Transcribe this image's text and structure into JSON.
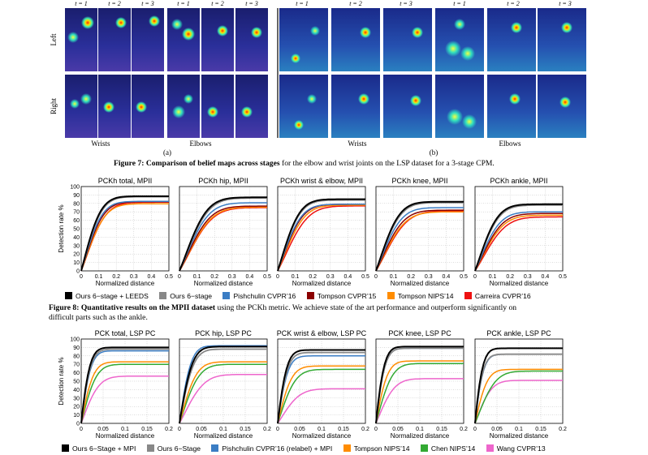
{
  "panelA": {
    "time_labels": [
      "t = 1",
      "t = 2",
      "t = 3",
      "t = 1",
      "t = 2",
      "t = 3"
    ],
    "row_labels": [
      "Left",
      "Right"
    ],
    "group_labels": [
      "Wrists",
      "Elbows"
    ],
    "sublabel": "(a)"
  },
  "panelB": {
    "time_labels": [
      "t = 1",
      "t = 2",
      "t = 3",
      "t = 1",
      "t = 2",
      "t = 3"
    ],
    "group_labels": [
      "Wrists",
      "Elbows"
    ],
    "sublabel": "(b)"
  },
  "fig7": {
    "label": "Figure 7:",
    "bold": "Comparison of belief maps across stages",
    "rest": "for the elbow and wrist joints on the LSP dataset for a 3-stage CPM."
  },
  "fig8": {
    "label": "Figure 8:",
    "bold": "Quantitative results on the MPII dataset",
    "rest1": "using the PCKh metric.  We achieve state of the art performance and outperform significantly on",
    "rest2": "difficult parts such as the ankle."
  },
  "legend_mpii": [
    {
      "label": "Ours 6−stage + LEEDS",
      "color": "#000000"
    },
    {
      "label": "Ours 6−stage",
      "color": "#888888"
    },
    {
      "label": "Pishchulin CVPR’16",
      "color": "#3b7dc4"
    },
    {
      "label": "Tompson CVPR’15",
      "color": "#8b0000"
    },
    {
      "label": "Tompson NIPS’14",
      "color": "#ff8c00"
    },
    {
      "label": "Carreira CVPR’16",
      "color": "#ee1111"
    }
  ],
  "legend_lsp": [
    {
      "label": "Ours 6−Stage + MPI",
      "color": "#000000"
    },
    {
      "label": "Ours 6−Stage",
      "color": "#888888"
    },
    {
      "label": "Pishchulin CVPR’16 (relabel) + MPI",
      "color": "#3b7dc4"
    },
    {
      "label": "Tompson NIPS’14",
      "color": "#ff8c00"
    },
    {
      "label": "Chen NIPS’14",
      "color": "#33aa33"
    },
    {
      "label": "Wang CVPR’13",
      "color": "#ee66cc"
    }
  ],
  "chart_data": [
    {
      "type": "line",
      "title": "PCKh total, MPII",
      "xlabel": "Normalized distance",
      "ylabel": "Detection rate %",
      "xlim": [
        0,
        0.5
      ],
      "ylim": [
        0,
        100
      ],
      "xticks": [
        "0",
        "0.1",
        "0.2",
        "0.3",
        "0.4",
        "0.5"
      ],
      "yticks": [
        "0",
        "10",
        "20",
        "30",
        "40",
        "50",
        "60",
        "70",
        "80",
        "90",
        "100"
      ],
      "grid": true,
      "series": [
        {
          "name": "Ours 6−stage + LEEDS",
          "final": 88.5,
          "k": 8.0
        },
        {
          "name": "Ours 6−stage",
          "final": 87.9,
          "k": 7.6
        },
        {
          "name": "Pishchulin CVPR’16",
          "final": 82.4,
          "k": 7.4
        },
        {
          "name": "Tompson CVPR’15",
          "final": 82.0,
          "k": 6.8
        },
        {
          "name": "Tompson NIPS’14",
          "final": 79.6,
          "k": 6.3
        },
        {
          "name": "Carreira CVPR’16",
          "final": 81.4,
          "k": 6.0
        }
      ]
    },
    {
      "type": "line",
      "title": "PCKh hip, MPII",
      "xlabel": "Normalized distance",
      "ylabel": "Detection rate %",
      "xlim": [
        0,
        0.5
      ],
      "ylim": [
        0,
        100
      ],
      "xticks": [
        "0",
        "0.1",
        "0.2",
        "0.3",
        "0.4",
        "0.5"
      ],
      "yticks": [
        "0",
        "10",
        "20",
        "30",
        "40",
        "50",
        "60",
        "70",
        "80",
        "90",
        "100"
      ],
      "grid": true,
      "series": [
        {
          "name": "Ours 6−stage + LEEDS",
          "final": 87.2,
          "k": 5.2
        },
        {
          "name": "Ours 6−stage",
          "final": 86.4,
          "k": 4.9
        },
        {
          "name": "Pishchulin CVPR’16",
          "final": 80.8,
          "k": 4.8
        },
        {
          "name": "Tompson CVPR’15",
          "final": 76.8,
          "k": 4.5
        },
        {
          "name": "Tompson NIPS’14",
          "final": 75.6,
          "k": 4.2
        },
        {
          "name": "Carreira CVPR’16",
          "final": 75.0,
          "k": 4.1
        }
      ]
    },
    {
      "type": "line",
      "title": "PCKh wrist & elbow, MPII",
      "xlabel": "Normalized distance",
      "ylabel": "Detection rate %",
      "xlim": [
        0,
        0.5
      ],
      "ylim": [
        0,
        100
      ],
      "xticks": [
        "0",
        "0.1",
        "0.2",
        "0.3",
        "0.4",
        "0.5"
      ],
      "yticks": [
        "0",
        "10",
        "20",
        "30",
        "40",
        "50",
        "60",
        "70",
        "80",
        "90",
        "100"
      ],
      "grid": true,
      "series": [
        {
          "name": "Ours 6−stage + LEEDS",
          "final": 85.0,
          "k": 7.0
        },
        {
          "name": "Ours 6−stage",
          "final": 84.0,
          "k": 6.8
        },
        {
          "name": "Pishchulin CVPR’16",
          "final": 79.0,
          "k": 6.4
        },
        {
          "name": "Tompson CVPR’15",
          "final": 79.0,
          "k": 6.0
        },
        {
          "name": "Tompson NIPS’14",
          "final": 78.0,
          "k": 5.4
        },
        {
          "name": "Carreira CVPR’16",
          "final": 77.0,
          "k": 4.6
        }
      ]
    },
    {
      "type": "line",
      "title": "PCKh knee, MPII",
      "xlabel": "Normalized distance",
      "ylabel": "Detection rate %",
      "xlim": [
        0,
        0.5
      ],
      "ylim": [
        0,
        100
      ],
      "xticks": [
        "0",
        "0.1",
        "0.2",
        "0.3",
        "0.4",
        "0.5"
      ],
      "yticks": [
        "0",
        "10",
        "20",
        "30",
        "40",
        "50",
        "60",
        "70",
        "80",
        "90",
        "100"
      ],
      "grid": true,
      "series": [
        {
          "name": "Ours 6−stage + LEEDS",
          "final": 82.0,
          "k": 6.4
        },
        {
          "name": "Ours 6−stage",
          "final": 81.0,
          "k": 6.1
        },
        {
          "name": "Pishchulin CVPR’16",
          "final": 75.0,
          "k": 5.8
        },
        {
          "name": "Tompson CVPR’15",
          "final": 72.0,
          "k": 5.2
        },
        {
          "name": "Tompson NIPS’14",
          "final": 70.0,
          "k": 4.8
        },
        {
          "name": "Carreira CVPR’16",
          "final": 71.0,
          "k": 4.4
        }
      ]
    },
    {
      "type": "line",
      "title": "PCKh ankle, MPII",
      "xlabel": "Normalized distance",
      "ylabel": "Detection rate %",
      "xlim": [
        0,
        0.5
      ],
      "ylim": [
        0,
        100
      ],
      "xticks": [
        "0",
        "0.1",
        "0.2",
        "0.3",
        "0.4",
        "0.5"
      ],
      "yticks": [
        "0",
        "10",
        "20",
        "30",
        "40",
        "50",
        "60",
        "70",
        "80",
        "90",
        "100"
      ],
      "grid": true,
      "series": [
        {
          "name": "Ours 6−stage + LEEDS",
          "final": 79.0,
          "k": 6.6
        },
        {
          "name": "Ours 6−stage",
          "final": 78.0,
          "k": 6.3
        },
        {
          "name": "Pishchulin CVPR’16",
          "final": 70.0,
          "k": 5.9
        },
        {
          "name": "Tompson CVPR’15",
          "final": 68.0,
          "k": 5.3
        },
        {
          "name": "Tompson NIPS’14",
          "final": 66.0,
          "k": 5.0
        },
        {
          "name": "Carreira CVPR’16",
          "final": 64.0,
          "k": 4.5
        }
      ]
    },
    {
      "type": "line",
      "title": "PCK total, LSP PC",
      "xlabel": "Normalized distance",
      "ylabel": "Detection rate %",
      "xlim": [
        0,
        0.2
      ],
      "ylim": [
        0,
        100
      ],
      "xticks": [
        "0",
        "0.05",
        "0.1",
        "0.15",
        "0.2"
      ],
      "yticks": [
        "0",
        "10",
        "20",
        "30",
        "40",
        "50",
        "60",
        "70",
        "80",
        "90",
        "100"
      ],
      "grid": true,
      "series": [
        {
          "name": "Ours 6−Stage + MPI",
          "final": 90.0,
          "k": 20.0
        },
        {
          "name": "Ours 6−Stage",
          "final": 88.0,
          "k": 18.5
        },
        {
          "name": "Pishchulin CVPR’16 (relabel) + MPI",
          "final": 86.0,
          "k": 18.0
        },
        {
          "name": "Tompson NIPS’14",
          "final": 73.0,
          "k": 14.0
        },
        {
          "name": "Chen NIPS’14",
          "final": 70.0,
          "k": 11.0
        },
        {
          "name": "Wang CVPR’13",
          "final": 56.0,
          "k": 9.0
        }
      ]
    },
    {
      "type": "line",
      "title": "PCK hip, LSP PC",
      "xlabel": "Normalized distance",
      "ylabel": "Detection rate %",
      "xlim": [
        0,
        0.2
      ],
      "ylim": [
        0,
        100
      ],
      "xticks": [
        "0",
        "0.05",
        "0.1",
        "0.15",
        "0.2"
      ],
      "yticks": [
        "0",
        "10",
        "20",
        "30",
        "40",
        "50",
        "60",
        "70",
        "80",
        "90",
        "100"
      ],
      "grid": true,
      "series": [
        {
          "name": "Ours 6−Stage + MPI",
          "final": 91.0,
          "k": 13.0
        },
        {
          "name": "Ours 6−Stage",
          "final": 88.0,
          "k": 12.0
        },
        {
          "name": "Pishchulin CVPR’16 (relabel) + MPI",
          "final": 92.0,
          "k": 15.0
        },
        {
          "name": "Tompson NIPS’14",
          "final": 73.0,
          "k": 9.5
        },
        {
          "name": "Chen NIPS’14",
          "final": 70.0,
          "k": 8.0
        },
        {
          "name": "Wang CVPR’13",
          "final": 58.0,
          "k": 6.0
        }
      ]
    },
    {
      "type": "line",
      "title": "PCK wrist & elbow, LSP PC",
      "xlabel": "Normalized distance",
      "ylabel": "Detection rate %",
      "xlim": [
        0,
        0.2
      ],
      "ylim": [
        0,
        100
      ],
      "xticks": [
        "0",
        "0.05",
        "0.1",
        "0.15",
        "0.2"
      ],
      "yticks": [
        "0",
        "10",
        "20",
        "30",
        "40",
        "50",
        "60",
        "70",
        "80",
        "90",
        "100"
      ],
      "grid": true,
      "series": [
        {
          "name": "Ours 6−Stage + MPI",
          "final": 87.0,
          "k": 19.0
        },
        {
          "name": "Ours 6−Stage",
          "final": 84.0,
          "k": 17.5
        },
        {
          "name": "Pishchulin CVPR’16 (relabel) + MPI",
          "final": 80.0,
          "k": 17.0
        },
        {
          "name": "Tompson NIPS’14",
          "final": 68.0,
          "k": 12.0
        },
        {
          "name": "Chen NIPS’14",
          "final": 64.0,
          "k": 9.0
        },
        {
          "name": "Wang CVPR’13",
          "final": 41.0,
          "k": 7.0
        }
      ]
    },
    {
      "type": "line",
      "title": "PCK knee, LSP PC",
      "xlabel": "Normalized distance",
      "ylabel": "Detection rate %",
      "xlim": [
        0,
        0.2
      ],
      "ylim": [
        0,
        100
      ],
      "xticks": [
        "0",
        "0.05",
        "0.1",
        "0.15",
        "0.2"
      ],
      "yticks": [
        "0",
        "10",
        "20",
        "30",
        "40",
        "50",
        "60",
        "70",
        "80",
        "90",
        "100"
      ],
      "grid": true,
      "series": [
        {
          "name": "Ours 6−Stage + MPI",
          "final": 91.0,
          "k": 21.0
        },
        {
          "name": "Ours 6−Stage",
          "final": 89.0,
          "k": 19.5
        },
        {
          "name": "Pishchulin CVPR’16 (relabel) + MPI",
          "final": 89.0,
          "k": 19.5
        },
        {
          "name": "Tompson NIPS’14",
          "final": 74.0,
          "k": 15.0
        },
        {
          "name": "Chen NIPS’14",
          "final": 71.0,
          "k": 10.0
        },
        {
          "name": "Wang CVPR’13",
          "final": 53.0,
          "k": 8.5
        }
      ]
    },
    {
      "type": "line",
      "title": "PCK ankle, LSP PC",
      "xlabel": "Normalized distance",
      "ylabel": "Detection rate %",
      "xlim": [
        0,
        0.2
      ],
      "ylim": [
        0,
        100
      ],
      "xticks": [
        "0",
        "0.05",
        "0.1",
        "0.15",
        "0.2"
      ],
      "yticks": [
        "0",
        "10",
        "20",
        "30",
        "40",
        "50",
        "60",
        "70",
        "80",
        "90",
        "100"
      ],
      "grid": true,
      "series": [
        {
          "name": "Ours 6−Stage + MPI",
          "final": 89.0,
          "k": 23.0
        },
        {
          "name": "Ours 6−Stage",
          "final": 82.0,
          "k": 22.0
        },
        {
          "name": "Pishchulin CVPR’16 (relabel) + MPI",
          "final": 82.0,
          "k": 21.0
        },
        {
          "name": "Tompson NIPS’14",
          "final": 64.0,
          "k": 14.0
        },
        {
          "name": "Chen NIPS’14",
          "final": 62.0,
          "k": 7.5
        },
        {
          "name": "Wang CVPR’13",
          "final": 51.0,
          "k": 10.0
        }
      ]
    }
  ]
}
